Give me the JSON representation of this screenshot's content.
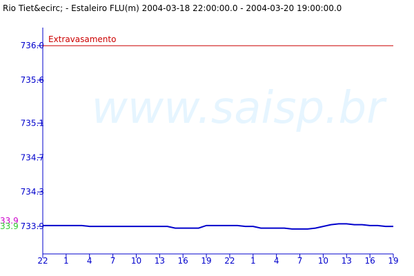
{
  "chart_data": {
    "type": "line",
    "title": "Rio Tiet&ecirc; - Estaleiro FLU(m) 2004-03-18 22:00:00.0 - 2004-03-20 19:00:00.0",
    "watermark": "www.saisp.br",
    "categories": [
      "22",
      null,
      null,
      "1",
      null,
      null,
      "4",
      null,
      null,
      "7",
      null,
      null,
      "10",
      null,
      null,
      "13",
      null,
      null,
      "16",
      null,
      null,
      "19",
      null,
      null,
      "22",
      null,
      null,
      "1",
      null,
      null,
      "4",
      null,
      null,
      "7",
      null,
      null,
      "10",
      null,
      null,
      "13",
      null,
      null,
      "16",
      null,
      null,
      "19"
    ],
    "series": [
      {
        "color": "#0000cc",
        "values": [
          733.91,
          733.91,
          733.91,
          733.91,
          733.91,
          733.91,
          733.9,
          733.9,
          733.9,
          733.9,
          733.9,
          733.9,
          733.9,
          733.9,
          733.9,
          733.9,
          733.9,
          733.88,
          733.88,
          733.88,
          733.88,
          733.91,
          733.91,
          733.91,
          733.91,
          733.91,
          733.9,
          733.9,
          733.88,
          733.88,
          733.88,
          733.88,
          733.87,
          733.87,
          733.87,
          733.88,
          733.9,
          733.92,
          733.93,
          733.93,
          733.92,
          733.92,
          733.91,
          733.91,
          733.9,
          733.9
        ]
      }
    ],
    "threshold": {
      "label": "Extravasamento",
      "value": 736.0,
      "color": "#cc0000"
    },
    "side_labels": [
      {
        "text": "33.9",
        "color": "#cc00cc"
      },
      {
        "text": "33.9",
        "color": "#33cc33"
      }
    ],
    "ylim": [
      733.58,
      736.21
    ],
    "yticks": [
      {
        "value": 733.9,
        "label": "733.9"
      },
      {
        "value": 734.3,
        "label": "734.3"
      },
      {
        "value": 734.7,
        "label": "734.7"
      },
      {
        "value": 735.1,
        "label": "735.1"
      },
      {
        "value": 735.6,
        "label": "735.6"
      },
      {
        "value": 736.0,
        "label": "736.0"
      }
    ],
    "axis_color": "#0000cc"
  }
}
